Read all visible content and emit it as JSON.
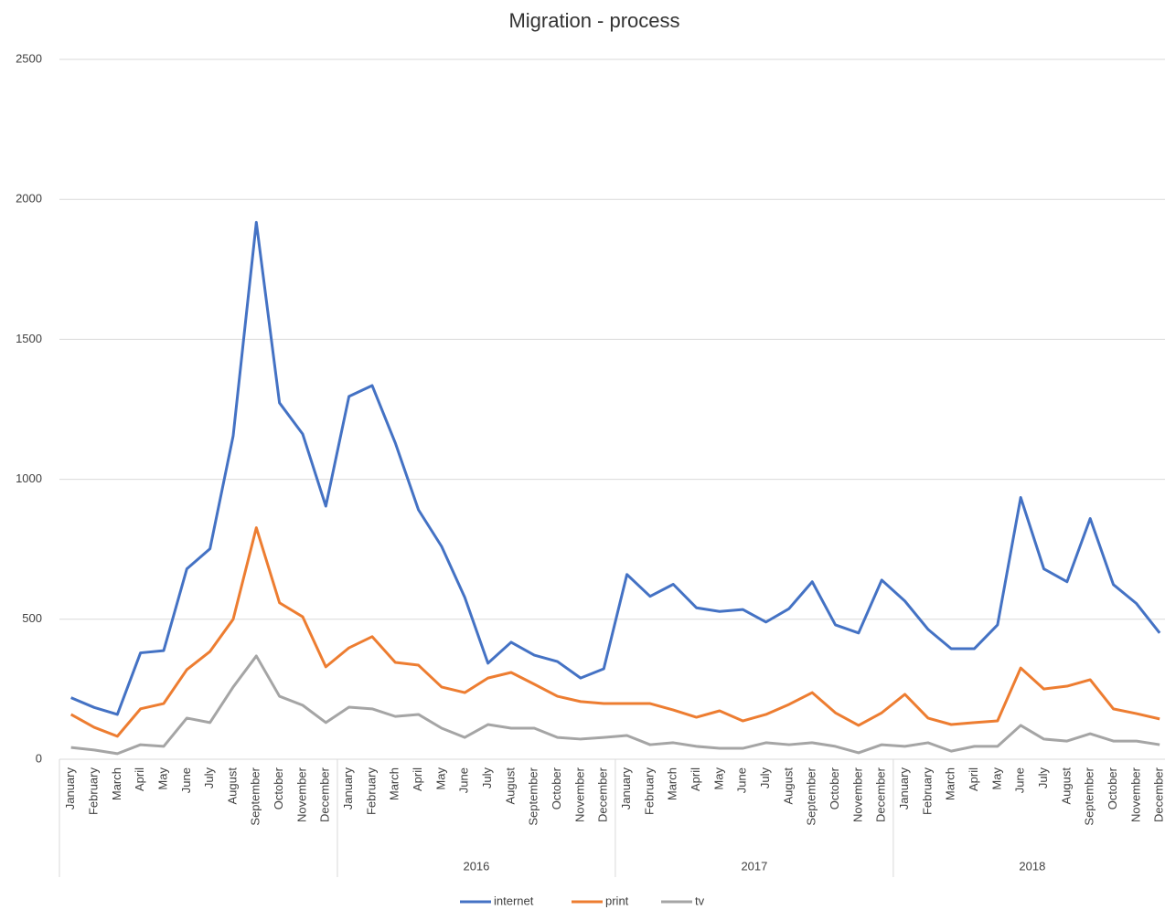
{
  "chart_data": {
    "type": "line",
    "title": "Migration - process",
    "categories": [
      "January",
      "February",
      "March",
      "April",
      "May",
      "June",
      "July",
      "August",
      "September",
      "October",
      "November",
      "December",
      "January",
      "February",
      "March",
      "April",
      "May",
      "June",
      "July",
      "August",
      "September",
      "October",
      "November",
      "December",
      "January",
      "February",
      "March",
      "April",
      "May",
      "June",
      "July",
      "August",
      "September",
      "October",
      "November",
      "December",
      "January",
      "February",
      "March",
      "April",
      "May",
      "June",
      "July",
      "August",
      "September",
      "October",
      "November",
      "December"
    ],
    "groups": [
      null,
      "2016",
      "2017",
      "2018"
    ],
    "series": [
      {
        "name": "internet",
        "color": "#4472c4",
        "values": [
          220,
          185,
          160,
          380,
          388,
          680,
          752,
          1155,
          1918,
          1273,
          1162,
          904,
          1296,
          1335,
          1130,
          891,
          760,
          578,
          343,
          418,
          372,
          349,
          290,
          323,
          660,
          582,
          625,
          541,
          528,
          535,
          490,
          538,
          634,
          480,
          451,
          640,
          565,
          464,
          395,
          395,
          480,
          935,
          680,
          634,
          860,
          624,
          556,
          451
        ]
      },
      {
        "name": "print",
        "color": "#ed7d31",
        "values": [
          160,
          114,
          82,
          180,
          199,
          320,
          385,
          500,
          827,
          559,
          509,
          330,
          398,
          438,
          346,
          336,
          258,
          238,
          290,
          310,
          268,
          225,
          206,
          199,
          199,
          199,
          176,
          150,
          173,
          137,
          160,
          196,
          238,
          166,
          121,
          166,
          232,
          147,
          124,
          131,
          137,
          326,
          251,
          261,
          284,
          180,
          163,
          144
        ]
      },
      {
        "name": "tv",
        "color": "#a5a5a5",
        "values": [
          42,
          33,
          20,
          52,
          46,
          147,
          131,
          258,
          369,
          225,
          193,
          131,
          186,
          180,
          153,
          160,
          111,
          78,
          124,
          111,
          111,
          78,
          72,
          78,
          85,
          52,
          59,
          46,
          39,
          39,
          59,
          52,
          59,
          46,
          23,
          52,
          46,
          59,
          29,
          46,
          46,
          121,
          72,
          65,
          91,
          65,
          65,
          52
        ]
      }
    ],
    "ylim": [
      0,
      2500
    ],
    "yticks": [
      0,
      500,
      1000,
      1500,
      2000,
      2500
    ],
    "grid": true,
    "legend": "bottom"
  }
}
